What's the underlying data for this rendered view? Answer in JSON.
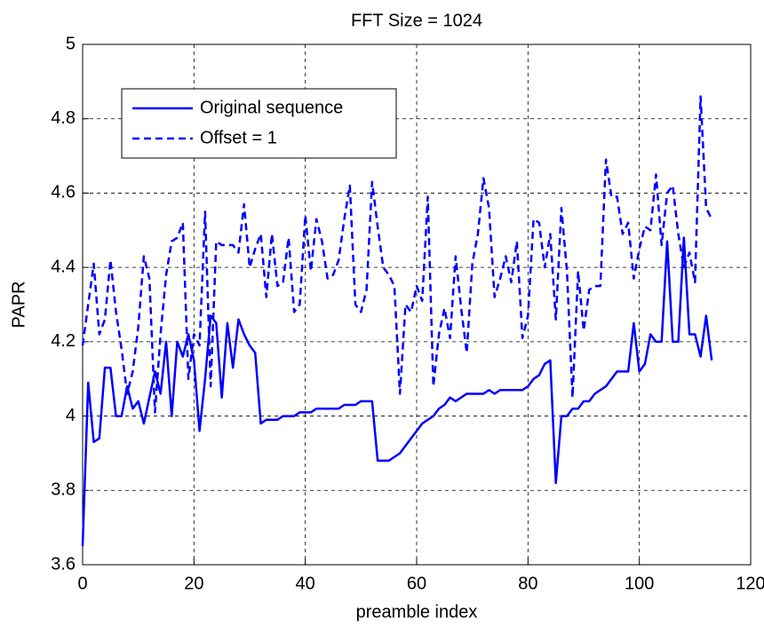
{
  "chart_data": {
    "type": "line",
    "title": "FFT Size = 1024",
    "x_label": "preamble index",
    "y_label": "PAPR",
    "x": [
      0,
      1,
      2,
      3,
      4,
      5,
      6,
      7,
      8,
      9,
      10,
      11,
      12,
      13,
      14,
      15,
      16,
      17,
      18,
      19,
      20,
      21,
      22,
      23,
      24,
      25,
      26,
      27,
      28,
      29,
      30,
      31,
      32,
      33,
      34,
      35,
      36,
      37,
      38,
      39,
      40,
      41,
      42,
      43,
      44,
      45,
      46,
      47,
      48,
      49,
      50,
      51,
      52,
      53,
      54,
      55,
      56,
      57,
      58,
      59,
      60,
      61,
      62,
      63,
      64,
      65,
      66,
      67,
      68,
      69,
      70,
      71,
      72,
      73,
      74,
      75,
      76,
      77,
      78,
      79,
      80,
      81,
      82,
      83,
      84,
      85,
      86,
      87,
      88,
      89,
      90,
      91,
      92,
      93,
      94,
      95,
      96,
      97,
      98,
      99,
      100,
      101,
      102,
      103,
      104,
      105,
      106,
      107,
      108,
      109,
      110,
      111,
      112,
      113
    ],
    "series": [
      {
        "name": "Original sequence",
        "color": "#0000ff",
        "dash": false,
        "values": [
          3.65,
          4.09,
          3.93,
          3.94,
          4.13,
          4.13,
          4.0,
          4.0,
          4.08,
          4.02,
          4.04,
          3.98,
          4.05,
          4.12,
          4.06,
          4.2,
          4.0,
          4.2,
          4.16,
          4.22,
          4.15,
          3.96,
          4.1,
          4.27,
          4.25,
          4.05,
          4.25,
          4.13,
          4.26,
          4.22,
          4.19,
          4.17,
          3.98,
          3.99,
          3.99,
          3.99,
          4.0,
          4.0,
          4.0,
          4.01,
          4.01,
          4.01,
          4.02,
          4.02,
          4.02,
          4.02,
          4.02,
          4.03,
          4.03,
          4.03,
          4.04,
          4.04,
          4.04,
          3.88,
          3.88,
          3.88,
          3.89,
          3.9,
          3.92,
          3.94,
          3.96,
          3.98,
          3.99,
          4.0,
          4.02,
          4.03,
          4.05,
          4.04,
          4.05,
          4.06,
          4.06,
          4.06,
          4.06,
          4.07,
          4.06,
          4.07,
          4.07,
          4.07,
          4.07,
          4.07,
          4.08,
          4.1,
          4.11,
          4.14,
          4.15,
          3.82,
          4.0,
          4.0,
          4.02,
          4.02,
          4.04,
          4.04,
          4.06,
          4.07,
          4.08,
          4.1,
          4.12,
          4.12,
          4.12,
          4.25,
          4.12,
          4.14,
          4.22,
          4.2,
          4.2,
          4.47,
          4.2,
          4.2,
          4.48,
          4.22,
          4.22,
          4.16,
          4.27,
          4.15
        ]
      },
      {
        "name": "Offset = 1",
        "color": "#0000ff",
        "dash": true,
        "values": [
          4.19,
          4.3,
          4.41,
          4.22,
          4.26,
          4.42,
          4.28,
          4.18,
          4.06,
          4.12,
          4.24,
          4.43,
          4.37,
          4.01,
          4.22,
          4.38,
          4.47,
          4.48,
          4.52,
          4.1,
          4.22,
          4.19,
          4.55,
          4.08,
          4.47,
          4.46,
          4.46,
          4.46,
          4.44,
          4.57,
          4.4,
          4.45,
          4.49,
          4.32,
          4.49,
          4.35,
          4.36,
          4.48,
          4.28,
          4.3,
          4.54,
          4.39,
          4.53,
          4.47,
          4.37,
          4.38,
          4.42,
          4.53,
          4.62,
          4.3,
          4.28,
          4.34,
          4.63,
          4.51,
          4.4,
          4.38,
          4.35,
          4.06,
          4.3,
          4.28,
          4.35,
          4.31,
          4.59,
          4.08,
          4.22,
          4.29,
          4.21,
          4.43,
          4.29,
          4.17,
          4.41,
          4.49,
          4.64,
          4.56,
          4.32,
          4.37,
          4.43,
          4.36,
          4.47,
          4.21,
          4.27,
          4.53,
          4.52,
          4.4,
          4.49,
          4.26,
          4.56,
          4.39,
          4.05,
          4.39,
          4.23,
          4.34,
          4.35,
          4.35,
          4.69,
          4.59,
          4.59,
          4.49,
          4.52,
          4.37,
          4.45,
          4.51,
          4.5,
          4.65,
          4.46,
          4.6,
          4.62,
          4.49,
          4.4,
          4.44,
          4.36,
          4.86,
          4.56,
          4.53
        ]
      }
    ],
    "xlim": [
      0,
      120
    ],
    "xticks": [
      0,
      20,
      40,
      60,
      80,
      100,
      120
    ],
    "ylim": [
      3.6,
      5
    ],
    "yticks": [
      3.6,
      3.8,
      4,
      4.2,
      4.4,
      4.6,
      4.8,
      5
    ],
    "grid": true,
    "legend": "upper-left"
  }
}
